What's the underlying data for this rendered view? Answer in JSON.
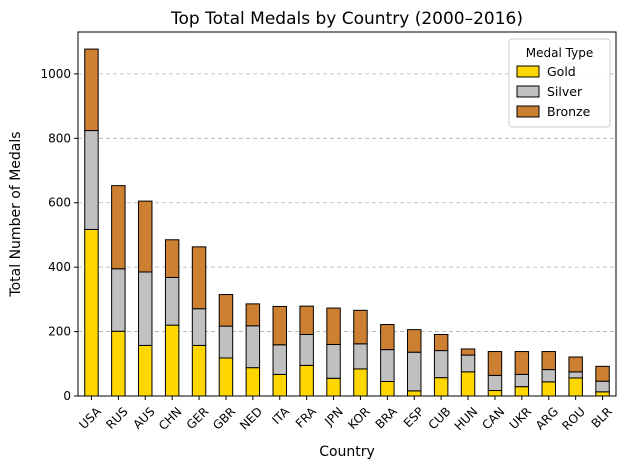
{
  "chart_data": {
    "type": "bar",
    "stacked": true,
    "title": "Top Total Medals by Country (2000–2016)",
    "xlabel": "Country",
    "ylabel": "Total Number of Medals",
    "ylim": [
      0,
      1130
    ],
    "yticks": [
      0,
      200,
      400,
      600,
      800,
      1000
    ],
    "grid": "y dashed",
    "legend": {
      "title": "Medal Type",
      "position": "top-right"
    },
    "categories": [
      "USA",
      "RUS",
      "AUS",
      "CHN",
      "GER",
      "GBR",
      "NED",
      "ITA",
      "FRA",
      "JPN",
      "KOR",
      "BRA",
      "ESP",
      "CUB",
      "HUN",
      "CAN",
      "UKR",
      "ARG",
      "ROU",
      "BLR"
    ],
    "series": [
      {
        "name": "Gold",
        "color": "#FFD700",
        "values": [
          517,
          201,
          157,
          220,
          157,
          118,
          88,
          67,
          95,
          55,
          84,
          45,
          16,
          57,
          75,
          17,
          29,
          44,
          56,
          13
        ]
      },
      {
        "name": "Silver",
        "color": "#C0C0C0",
        "values": [
          307,
          194,
          228,
          148,
          114,
          99,
          130,
          92,
          96,
          105,
          78,
          99,
          120,
          84,
          52,
          47,
          38,
          38,
          19,
          33
        ]
      },
      {
        "name": "Bronze",
        "color": "#CD7F32",
        "values": [
          253,
          258,
          220,
          117,
          192,
          98,
          68,
          119,
          88,
          113,
          104,
          78,
          70,
          50,
          19,
          74,
          71,
          56,
          46,
          46
        ]
      }
    ]
  }
}
